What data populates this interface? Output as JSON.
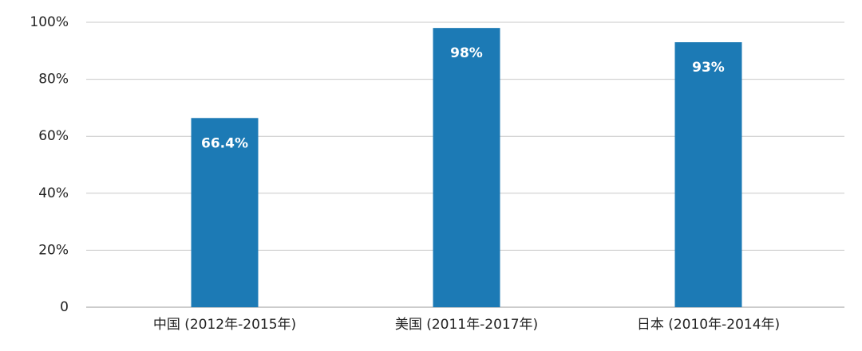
{
  "chart_data": {
    "type": "bar",
    "categories": [
      "中国 (2012年-2015年)",
      "美国 (2011年-2017年)",
      "日本 (2010年-2014年)"
    ],
    "values": [
      66.4,
      98,
      93
    ],
    "value_labels": [
      "66.4%",
      "98%",
      "93%"
    ],
    "color": "#1c7ab5",
    "ylim": [
      0,
      100
    ],
    "yticks": [
      0,
      {
        "value": 20,
        "label": "20%"
      },
      {
        "value": 40,
        "label": "40%"
      },
      {
        "value": 60,
        "label": "60%"
      },
      {
        "value": 80,
        "label": "80%"
      },
      {
        "value": 100,
        "label": "100%"
      }
    ],
    "grid": true
  }
}
